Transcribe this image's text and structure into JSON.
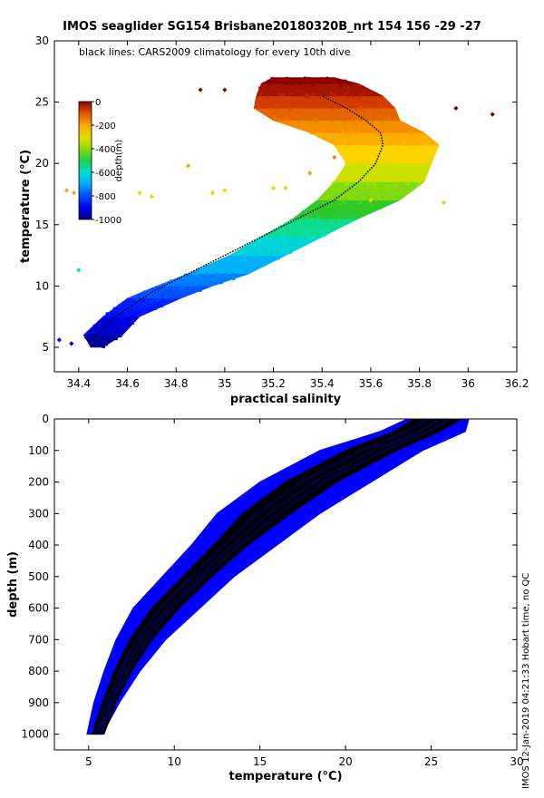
{
  "page": {
    "title": "IMOS seaglider SG154 Brisbane20180320B_nrt 154  156  -29  -27",
    "side_note": "IMOS 12-Jan-2019 04:21:33 Hobart time, no QC"
  },
  "colors": {
    "profile_blue": "#0000ff",
    "climatology_black": "#000000"
  },
  "chart_data": [
    {
      "type": "scatter",
      "name": "temperature-salinity",
      "title": "IMOS seaglider SG154 Brisbane20180320B_nrt 154  156  -29  -27",
      "annotation": "black lines: CARS2009 climatology for every 10th dive",
      "xlabel": "practical salinity",
      "ylabel": "temperature (°C)",
      "xlim": [
        34.3,
        36.2
      ],
      "ylim": [
        3,
        30
      ],
      "xticks": [
        34.4,
        34.6,
        34.8,
        35,
        35.2,
        35.4,
        35.6,
        35.8,
        36,
        36.2
      ],
      "xtick_labels": [
        "34.4",
        "34.6",
        "34.8",
        "35",
        "35.2",
        "35.4",
        "35.6",
        "35.8",
        "36",
        "36.2"
      ],
      "yticks": [
        5,
        10,
        15,
        20,
        25,
        30
      ],
      "ytick_labels": [
        "5",
        "10",
        "15",
        "20",
        "25",
        "30"
      ],
      "colorbar": {
        "label": "depth(m)",
        "range": [
          -1000,
          0
        ],
        "ticks": [
          0,
          -200,
          -400,
          -600,
          -800,
          -1000
        ],
        "tick_labels": [
          "0",
          "-200",
          "-400",
          "-600",
          "-800",
          "-1000"
        ]
      },
      "climatology_curve": {
        "salinity": [
          34.45,
          34.47,
          34.55,
          34.7,
          34.85,
          35.0,
          35.15,
          35.3,
          35.45,
          35.55,
          35.62,
          35.65,
          35.64,
          35.58,
          35.5,
          35.4
        ],
        "temperature": [
          5.0,
          6.0,
          7.5,
          9.5,
          11.0,
          12.5,
          14.0,
          15.5,
          17.0,
          18.5,
          20.0,
          21.5,
          22.5,
          23.5,
          24.5,
          25.5
        ]
      },
      "envelope": [
        {
          "t": 5.0,
          "smin": 34.45,
          "smax": 34.5
        },
        {
          "t": 6.0,
          "smin": 34.42,
          "smax": 34.58
        },
        {
          "t": 7.5,
          "smin": 34.5,
          "smax": 34.65
        },
        {
          "t": 9.0,
          "smin": 34.6,
          "smax": 34.82
        },
        {
          "t": 10.0,
          "smin": 34.72,
          "smax": 34.95
        },
        {
          "t": 11.0,
          "smin": 34.85,
          "smax": 35.1
        },
        {
          "t": 12.5,
          "smin": 35.02,
          "smax": 35.25
        },
        {
          "t": 14.0,
          "smin": 35.15,
          "smax": 35.4
        },
        {
          "t": 15.5,
          "smin": 35.28,
          "smax": 35.55
        },
        {
          "t": 17.0,
          "smin": 35.38,
          "smax": 35.72
        },
        {
          "t": 18.5,
          "smin": 35.45,
          "smax": 35.82
        },
        {
          "t": 20.0,
          "smin": 35.5,
          "smax": 35.85
        },
        {
          "t": 21.5,
          "smin": 35.45,
          "smax": 35.88
        },
        {
          "t": 22.5,
          "smin": 35.35,
          "smax": 35.82
        },
        {
          "t": 23.5,
          "smin": 35.2,
          "smax": 35.72
        },
        {
          "t": 24.5,
          "smin": 35.12,
          "smax": 35.7
        },
        {
          "t": 25.5,
          "smin": 35.13,
          "smax": 35.65
        },
        {
          "t": 26.5,
          "smin": 35.15,
          "smax": 35.55
        },
        {
          "t": 27.0,
          "smin": 35.2,
          "smax": 35.45
        }
      ],
      "outliers": [
        {
          "s": 34.4,
          "t": 11.3,
          "depth": -600
        },
        {
          "s": 34.37,
          "t": 5.3,
          "depth": -950
        },
        {
          "s": 34.32,
          "t": 5.6,
          "depth": -900
        },
        {
          "s": 34.35,
          "t": 17.8,
          "depth": -200
        },
        {
          "s": 34.38,
          "t": 17.6,
          "depth": -200
        },
        {
          "s": 34.9,
          "t": 26.0,
          "depth": 0
        },
        {
          "s": 35.0,
          "t": 26.0,
          "depth": 0
        },
        {
          "s": 34.95,
          "t": 17.6,
          "depth": -300
        },
        {
          "s": 35.0,
          "t": 17.8,
          "depth": -300
        },
        {
          "s": 34.85,
          "t": 19.8,
          "depth": -200
        },
        {
          "s": 35.2,
          "t": 18.0,
          "depth": -300
        },
        {
          "s": 35.25,
          "t": 18.0,
          "depth": -300
        },
        {
          "s": 36.1,
          "t": 24.0,
          "depth": 0
        },
        {
          "s": 35.95,
          "t": 24.5,
          "depth": 0
        },
        {
          "s": 35.6,
          "t": 17.0,
          "depth": -300
        },
        {
          "s": 35.9,
          "t": 16.8,
          "depth": -300
        },
        {
          "s": 34.65,
          "t": 17.6,
          "depth": -300
        },
        {
          "s": 34.7,
          "t": 17.3,
          "depth": -300
        },
        {
          "s": 35.45,
          "t": 20.5,
          "depth": -150
        },
        {
          "s": 35.35,
          "t": 19.2,
          "depth": -200
        }
      ]
    },
    {
      "type": "line",
      "name": "depth-temperature",
      "xlabel": "temperature (°C)",
      "ylabel": "depth (m)",
      "xlim": [
        3,
        30
      ],
      "ylim": [
        0,
        1050
      ],
      "y_reversed": true,
      "xticks": [
        5,
        10,
        15,
        20,
        25,
        30
      ],
      "xtick_labels": [
        "5",
        "10",
        "15",
        "20",
        "25",
        "30"
      ],
      "yticks": [
        0,
        100,
        200,
        300,
        400,
        500,
        600,
        700,
        800,
        900,
        1000
      ],
      "ytick_labels": [
        "0",
        "100",
        "200",
        "300",
        "400",
        "500",
        "600",
        "700",
        "800",
        "900",
        "1000"
      ],
      "profile_envelope": [
        {
          "depth": 0,
          "tmin": 23.6,
          "tmax": 27.2
        },
        {
          "depth": 40,
          "tmin": 22.0,
          "tmax": 27.0
        },
        {
          "depth": 100,
          "tmin": 18.5,
          "tmax": 24.5
        },
        {
          "depth": 200,
          "tmin": 15.0,
          "tmax": 21.5
        },
        {
          "depth": 300,
          "tmin": 12.5,
          "tmax": 18.5
        },
        {
          "depth": 400,
          "tmin": 11.0,
          "tmax": 16.0
        },
        {
          "depth": 500,
          "tmin": 9.3,
          "tmax": 13.5
        },
        {
          "depth": 600,
          "tmin": 7.6,
          "tmax": 11.5
        },
        {
          "depth": 700,
          "tmin": 6.6,
          "tmax": 9.5
        },
        {
          "depth": 800,
          "tmin": 5.9,
          "tmax": 8.0
        },
        {
          "depth": 900,
          "tmin": 5.3,
          "tmax": 6.8
        },
        {
          "depth": 1000,
          "tmin": 4.9,
          "tmax": 5.8
        }
      ],
      "climatology_band": [
        {
          "depth": 0,
          "tmin": 24.0,
          "tmax": 26.8
        },
        {
          "depth": 40,
          "tmin": 22.8,
          "tmax": 25.5
        },
        {
          "depth": 100,
          "tmin": 20.0,
          "tmax": 23.0
        },
        {
          "depth": 200,
          "tmin": 16.5,
          "tmax": 19.5
        },
        {
          "depth": 300,
          "tmin": 14.0,
          "tmax": 16.8
        },
        {
          "depth": 400,
          "tmin": 12.3,
          "tmax": 14.3
        },
        {
          "depth": 500,
          "tmin": 10.5,
          "tmax": 12.2
        },
        {
          "depth": 600,
          "tmin": 8.7,
          "tmax": 10.3
        },
        {
          "depth": 700,
          "tmin": 7.4,
          "tmax": 8.7
        },
        {
          "depth": 800,
          "tmin": 6.5,
          "tmax": 7.5
        },
        {
          "depth": 900,
          "tmin": 5.8,
          "tmax": 6.6
        },
        {
          "depth": 1000,
          "tmin": 5.2,
          "tmax": 5.9
        }
      ]
    }
  ]
}
